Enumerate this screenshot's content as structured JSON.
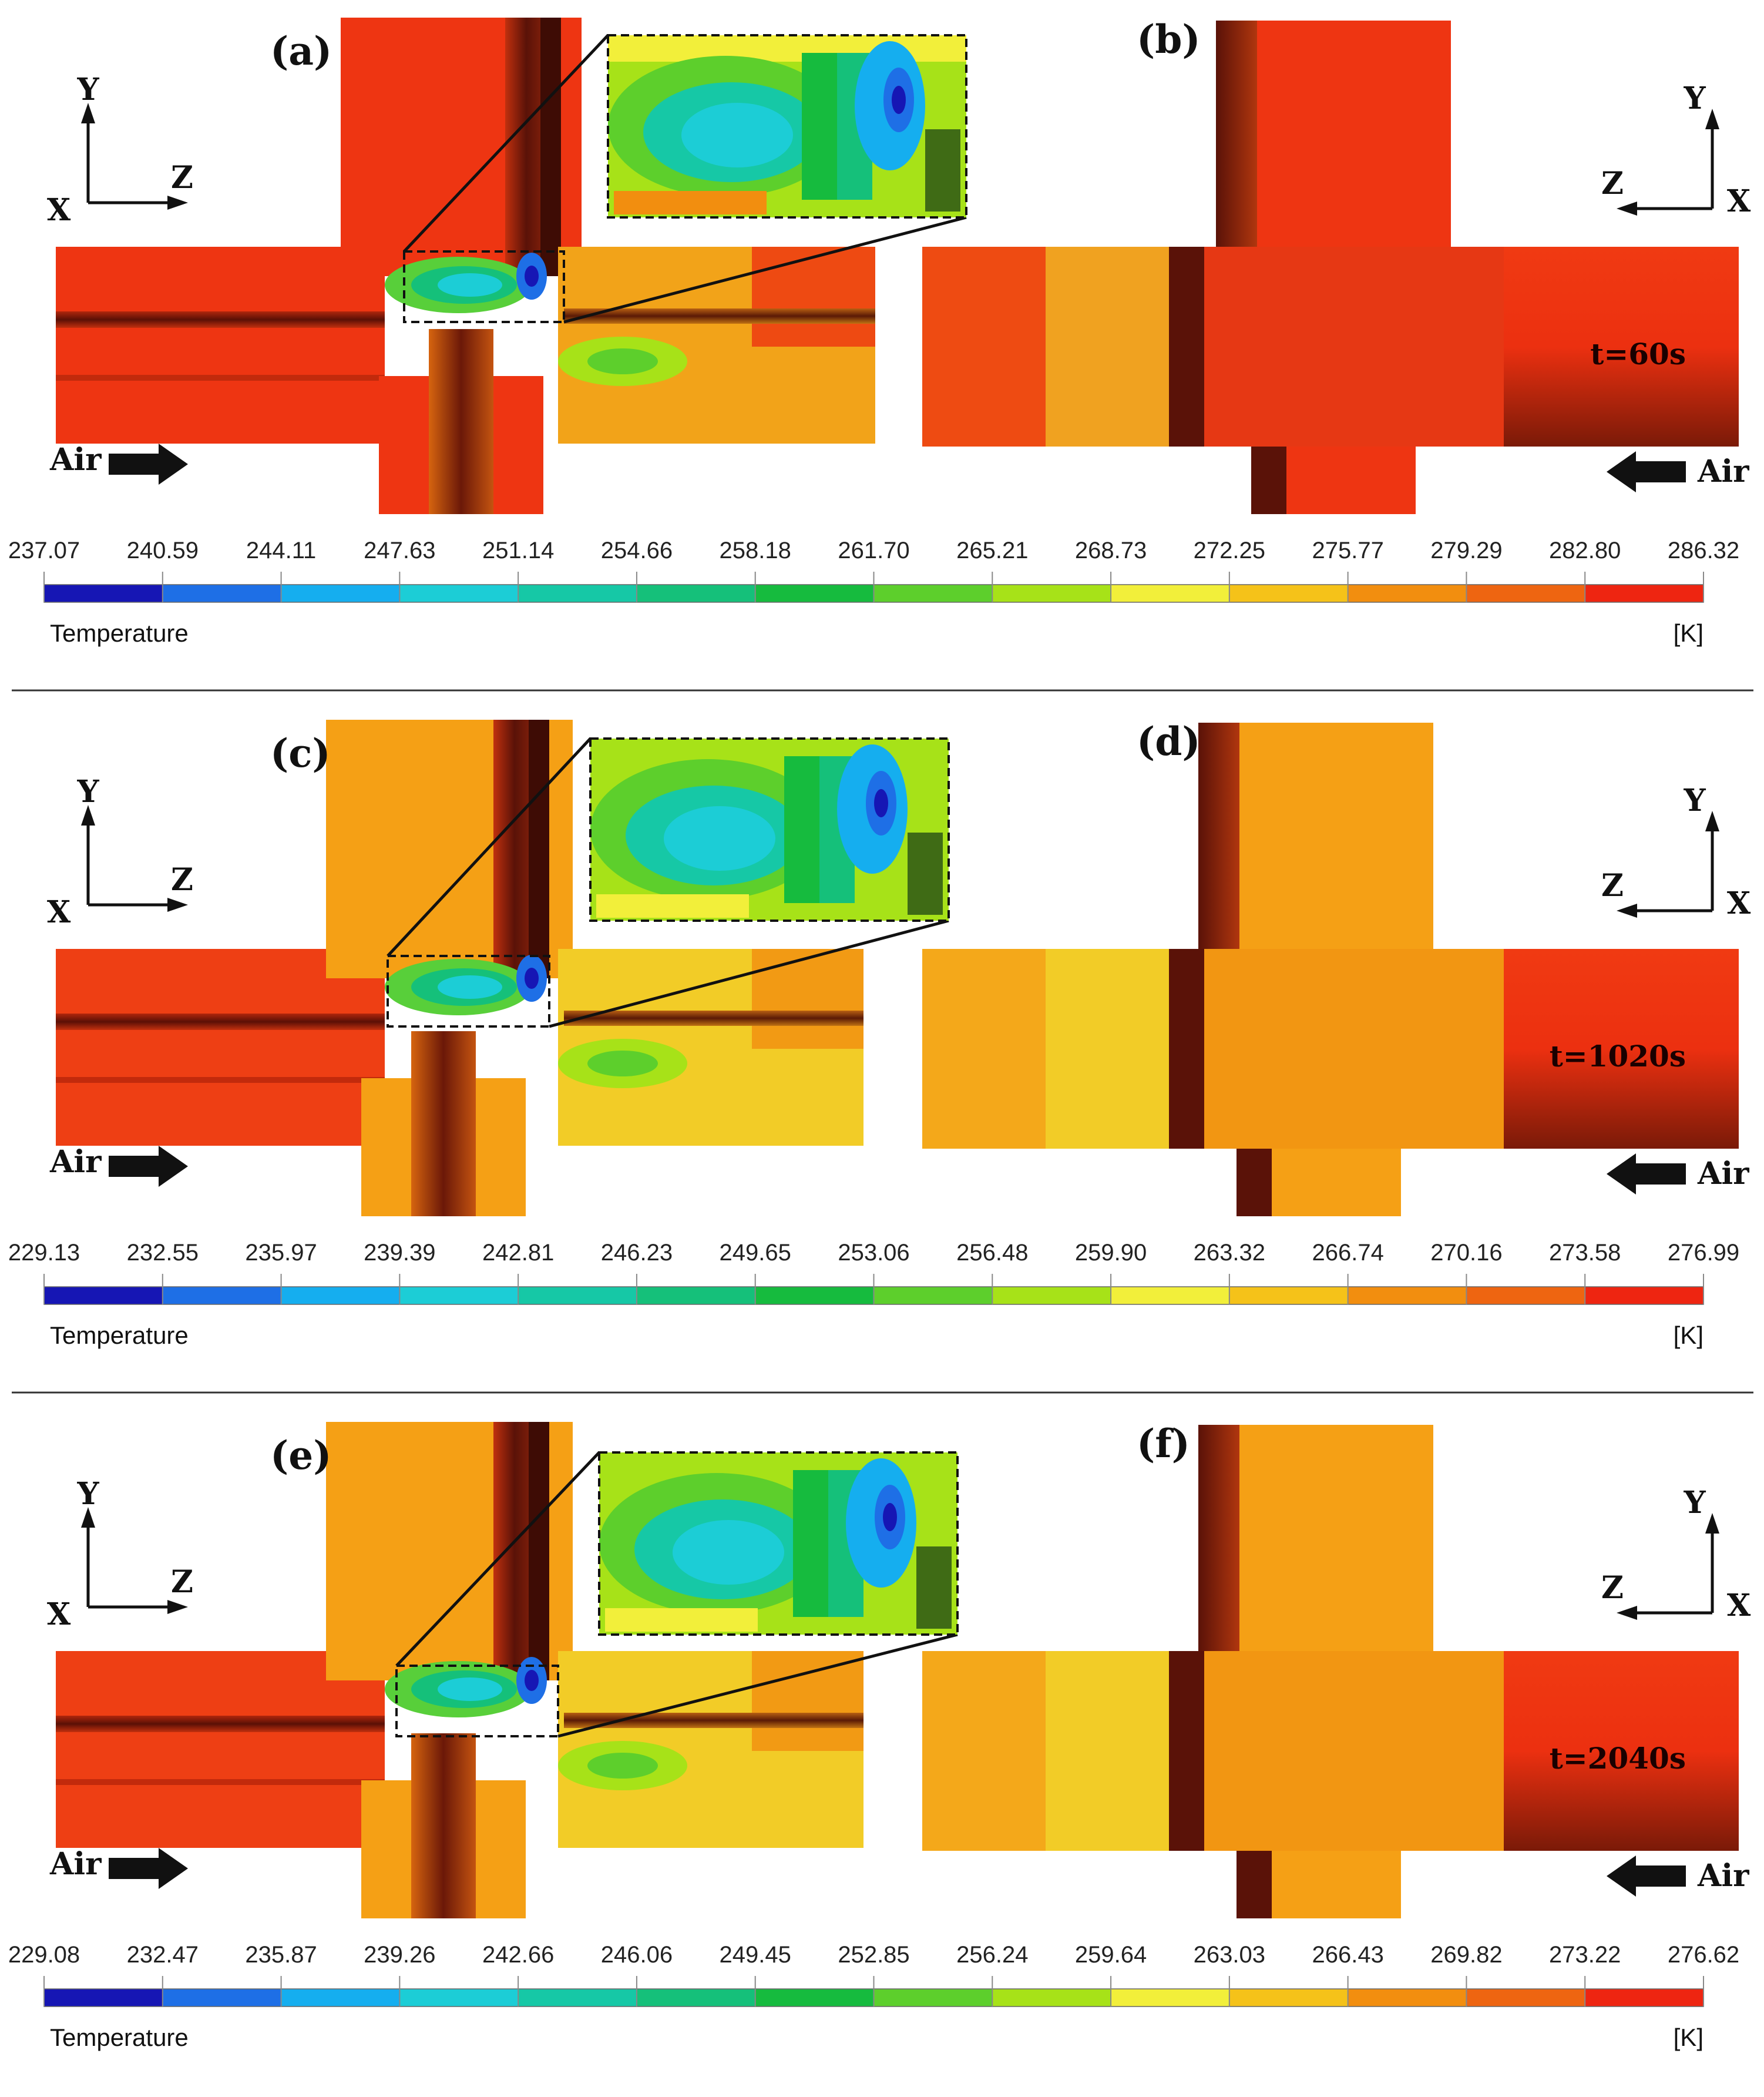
{
  "rows": [
    {
      "left_label": "(a)",
      "right_label": "(b)",
      "time": "t=60s",
      "colorbar": {
        "ticks": [
          "237.07",
          "240.59",
          "244.11",
          "247.63",
          "251.14",
          "254.66",
          "258.18",
          "261.70",
          "265.21",
          "268.73",
          "272.25",
          "275.77",
          "279.29",
          "282.80",
          "286.32"
        ],
        "title": "Temperature",
        "unit": "[K]"
      },
      "variant": 0
    },
    {
      "left_label": "(c)",
      "right_label": "(d)",
      "time": "t=1020s",
      "colorbar": {
        "ticks": [
          "229.13",
          "232.55",
          "235.97",
          "239.39",
          "242.81",
          "246.23",
          "249.65",
          "253.06",
          "256.48",
          "259.90",
          "263.32",
          "266.74",
          "270.16",
          "273.58",
          "276.99"
        ],
        "title": "Temperature",
        "unit": "[K]"
      },
      "variant": 1
    },
    {
      "left_label": "(e)",
      "right_label": "(f)",
      "time": "t=2040s",
      "colorbar": {
        "ticks": [
          "229.08",
          "232.47",
          "235.87",
          "239.26",
          "242.66",
          "246.06",
          "249.45",
          "252.85",
          "256.24",
          "259.64",
          "263.03",
          "266.43",
          "269.82",
          "273.22",
          "276.62"
        ],
        "title": "Temperature",
        "unit": "[K]"
      },
      "variant": 1
    }
  ],
  "axes": {
    "left": {
      "up": "Y",
      "right": "Z",
      "corner": "X"
    },
    "right": {
      "up": "Y",
      "left": "Z",
      "corner": "X"
    }
  },
  "air_label": "Air",
  "colormap": [
    "#1616b4",
    "#1e6fe6",
    "#15aeef",
    "#1ccdd6",
    "#16c8a6",
    "#15c07a",
    "#16bb3e",
    "#5dcf2c",
    "#a7e218",
    "#f2ef3a",
    "#f5c219",
    "#f28e0f",
    "#ee4511"
  ]
}
